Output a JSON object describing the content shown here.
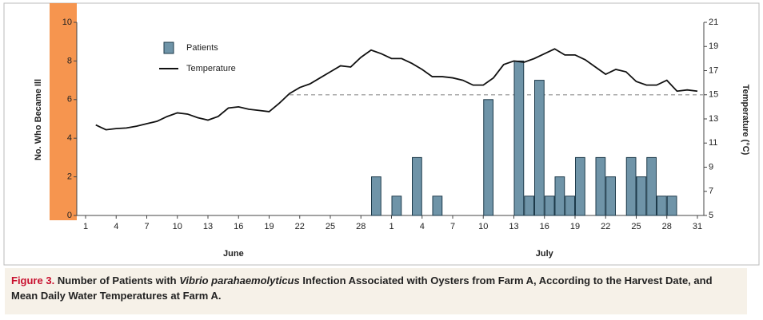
{
  "chart_data": {
    "type": "bar_line",
    "y_label": "No. Who Became Ill",
    "y2_label": "Temperature (°C)",
    "categories": [
      "1",
      null,
      null,
      "4",
      null,
      null,
      "7",
      null,
      null,
      "10",
      null,
      null,
      "13",
      null,
      null,
      "16",
      null,
      null,
      "19",
      null,
      null,
      "22",
      null,
      null,
      "25",
      null,
      null,
      "28",
      null,
      null,
      "1",
      null,
      null,
      "4",
      null,
      null,
      "7",
      null,
      null,
      "10",
      null,
      null,
      "13",
      null,
      null,
      "16",
      null,
      null,
      "19",
      null,
      null,
      "22",
      null,
      null,
      "25",
      null,
      null,
      "28",
      null,
      null,
      "31"
    ],
    "months": [
      "June",
      "July"
    ],
    "series": [
      {
        "name": "Patients",
        "type": "bar",
        "color": "#6f94a8",
        "axis": "y",
        "values": [
          0,
          0,
          0,
          0,
          0,
          0,
          0,
          0,
          0,
          0,
          0,
          0,
          0,
          0,
          0,
          0,
          0,
          0,
          0,
          0,
          0,
          0,
          0,
          0,
          0,
          0,
          0,
          0,
          2,
          0,
          1,
          0,
          3,
          0,
          1,
          0,
          0,
          0,
          0,
          6,
          0,
          0,
          8,
          1,
          7,
          1,
          2,
          1,
          3,
          0,
          3,
          2,
          0,
          3,
          2,
          3,
          1,
          1,
          0,
          0,
          0
        ]
      },
      {
        "name": "Temperature",
        "type": "line",
        "color": "#111111",
        "axis": "y2",
        "values": [
          null,
          12.5,
          12.1,
          12.2,
          12.25,
          12.4,
          12.6,
          12.8,
          13.2,
          13.5,
          13.4,
          13.1,
          12.9,
          13.2,
          13.9,
          14.0,
          13.8,
          13.7,
          13.6,
          14.3,
          15.1,
          15.6,
          15.9,
          16.4,
          16.9,
          17.4,
          17.3,
          18.1,
          18.7,
          18.4,
          18.0,
          18.0,
          17.6,
          17.1,
          16.5,
          16.5,
          16.4,
          16.2,
          15.8,
          15.8,
          16.4,
          17.5,
          17.8,
          17.7,
          18.0,
          18.4,
          18.8,
          18.3,
          18.3,
          17.9,
          17.3,
          16.7,
          17.1,
          16.9,
          16.1,
          15.8,
          15.8,
          16.2,
          15.3,
          15.4,
          15.3
        ]
      }
    ],
    "ylim": [
      0,
      10
    ],
    "yticks": [
      0,
      2,
      4,
      6,
      8,
      10
    ],
    "y2lim": [
      5,
      21
    ],
    "y2ticks": [
      5,
      7,
      9,
      11,
      13,
      15,
      17,
      19,
      21
    ],
    "reference_y2": 15,
    "caption": {
      "label": "Figure 3.",
      "parts": [
        "Number of Patients with ",
        "Vibrio parahaemolyticus",
        " Infection Associated with Oysters from Farm A, According to the Harvest Date, and Mean Daily Water Temperatures at Farm A."
      ]
    }
  }
}
